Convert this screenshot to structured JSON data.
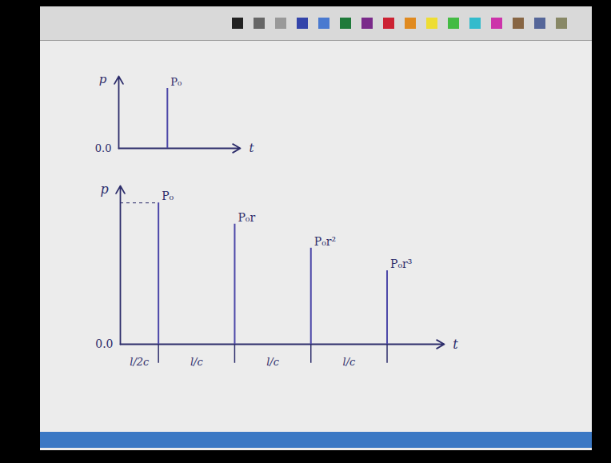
{
  "chart_data": [
    {
      "type": "spike",
      "x_label": "t",
      "y_label": "p",
      "x": [
        0.4
      ],
      "values": [
        1
      ],
      "annotations": [
        "P₀"
      ],
      "xlim": [
        0,
        1
      ],
      "ylim": [
        0,
        1.2
      ],
      "yticks": [
        0
      ],
      "tick_labels": "y",
      "color": "#4b46a8"
    },
    {
      "type": "spike",
      "x_label": "t",
      "y_label": "p",
      "x": [
        0.5,
        1.5,
        2.5,
        3.5
      ],
      "values": [
        1,
        0.85,
        0.68,
        0.52
      ],
      "annotations": [
        "P₀",
        "P₀r",
        "P₀r²",
        "P₀r³"
      ],
      "interval_labels": [
        "l/2c",
        "l/c",
        "l/c",
        "l/c"
      ],
      "xlim": [
        0,
        4.25
      ],
      "ylim": [
        0,
        1.12
      ],
      "yticks": [
        0
      ],
      "tick_labels": "y",
      "color": "#4b46a8"
    }
  ]
}
